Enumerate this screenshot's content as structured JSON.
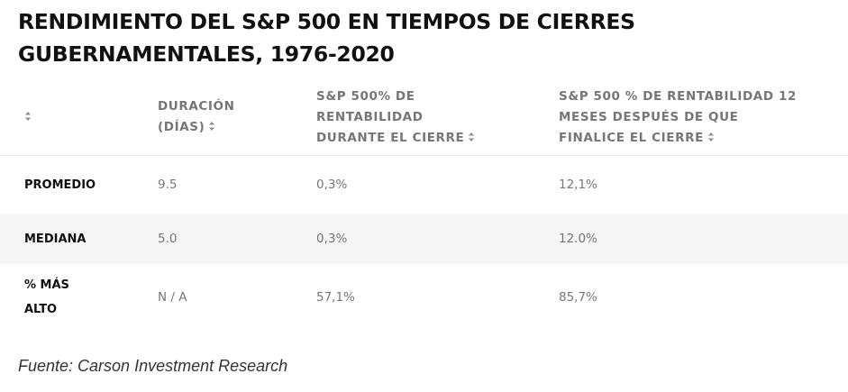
{
  "title": "RENDIMIENTO DEL S&P 500 EN TIEMPOS DE CIERRES GUBERNAMENTALES, 1976-2020",
  "table": {
    "headers": [
      "",
      "DURACIÓN (DÍAS)",
      "S&P 500% DE RENTABILIDAD DURANTE EL CIERRE",
      "S&P 500 % DE RENTABILIDAD 12 MESES DESPUÉS DE QUE FINALICE EL CIERRE"
    ],
    "rows": [
      [
        "PROMEDIO",
        "9.5",
        "0,3%",
        "12,1%"
      ],
      [
        "MEDIANA",
        "5.0",
        "0,3%",
        "12.0%"
      ],
      [
        "% MÁS ALTO",
        "N / A",
        "57,1%",
        "85,7%"
      ]
    ]
  },
  "source": "Fuente: Carson Investment Research",
  "icons": {
    "sort": "sort-icon"
  },
  "colors": {
    "header_text": "#767676",
    "row_label": "#111111",
    "striped_row": "#f6f6f6"
  }
}
